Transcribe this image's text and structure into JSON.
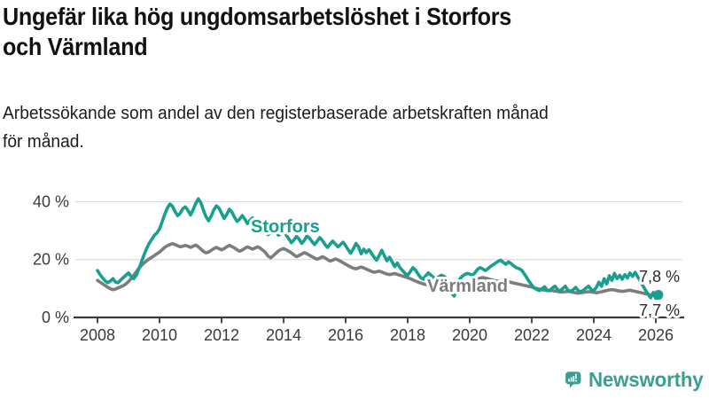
{
  "title": {
    "line1": "Ungefär lika hög ungdomsarbetslöshet i Storfors",
    "line2": "och Värmland"
  },
  "subtitle": {
    "line1": "Arbetssökande som andel av den registerbaserade arbetskraften månad",
    "line2": "för månad."
  },
  "branding": {
    "name": "Newsworthy",
    "logo_icon": "bar-chart-speech-bubble-icon",
    "color": "#3a9e90"
  },
  "chart_data": {
    "type": "line",
    "title": "",
    "xlabel": "",
    "ylabel": "",
    "frequency": "monthly",
    "x_start": "2008-01",
    "x_end": "2026-02",
    "ylim": [
      0,
      44
    ],
    "grid": "horizontal",
    "y_gridlines": [
      20,
      40
    ],
    "y_tick_labels": [
      "40 %",
      "20 %",
      "0 %"
    ],
    "x_tick_labels": [
      "2008",
      "2010",
      "2012",
      "2014",
      "2016",
      "2018",
      "2020",
      "2022",
      "2024",
      "2026"
    ],
    "legend_position": "inline-labels",
    "series": [
      {
        "name": "Storfors",
        "color": "#17a08d",
        "end_label": "7,8 %",
        "end_value": 7.8,
        "values": [
          16.2,
          14.8,
          13.6,
          12.6,
          12.0,
          12.6,
          13.4,
          12.2,
          12.0,
          13.0,
          13.8,
          14.6,
          15.4,
          14.2,
          13.4,
          14.6,
          16.8,
          19.2,
          21.6,
          23.8,
          25.6,
          27.0,
          28.4,
          29.2,
          30.6,
          33.0,
          35.6,
          37.8,
          39.2,
          38.4,
          36.6,
          35.2,
          36.0,
          37.6,
          38.2,
          37.0,
          35.4,
          37.2,
          39.4,
          41.0,
          39.6,
          37.0,
          34.8,
          33.4,
          35.0,
          37.2,
          38.6,
          37.8,
          36.0,
          34.2,
          35.6,
          37.4,
          36.4,
          34.6,
          33.2,
          34.0,
          35.2,
          34.0,
          32.4,
          33.6,
          34.4,
          33.0,
          31.6,
          30.4,
          31.2,
          29.8,
          28.6,
          29.6,
          30.6,
          29.4,
          28.4,
          29.0,
          29.8,
          28.6,
          27.2,
          25.8,
          26.8,
          28.0,
          27.0,
          25.6,
          26.6,
          28.2,
          27.4,
          26.2,
          25.2,
          26.4,
          27.6,
          26.6,
          25.2,
          24.2,
          25.4,
          26.4,
          25.4,
          24.4,
          25.2,
          26.0,
          24.8,
          23.4,
          22.2,
          23.8,
          25.6,
          24.4,
          22.0,
          23.6,
          22.4,
          23.4,
          22.2,
          20.8,
          19.8,
          21.4,
          23.2,
          21.2,
          19.6,
          20.8,
          19.2,
          17.6,
          18.8,
          17.2,
          16.2,
          15.2,
          14.6,
          15.8,
          17.2,
          16.4,
          15.0,
          13.8,
          13.2,
          14.4,
          15.4,
          14.6,
          13.8,
          13.4,
          14.0,
          14.6,
          14.2,
          13.6,
          12.6,
          8.4,
          7.4,
          10.2,
          13.0,
          14.2,
          14.8,
          15.2,
          15.0,
          14.6,
          15.4,
          16.6,
          17.2,
          16.8,
          16.2,
          16.8,
          17.6,
          18.2,
          18.8,
          19.4,
          19.8,
          19.0,
          18.4,
          19.2,
          18.6,
          17.8,
          17.2,
          16.9,
          16.4,
          15.2,
          13.8,
          12.4,
          11.2,
          10.2,
          9.6,
          9.3,
          10.0,
          10.6,
          9.4,
          9.2,
          10.2,
          10.8,
          9.6,
          9.2,
          10.0,
          10.8,
          9.4,
          9.0,
          9.6,
          10.4,
          9.2,
          8.9,
          9.4,
          10.2,
          10.8,
          9.6,
          9.2,
          10.4,
          12.2,
          10.8,
          13.4,
          11.6,
          14.4,
          12.8,
          15.2,
          13.4,
          14.6,
          13.2,
          14.8,
          13.6,
          15.4,
          14.2,
          15.6,
          14.0,
          12.6,
          11.0,
          9.4,
          8.0,
          6.8,
          8.6,
          6.6,
          7.8
        ]
      },
      {
        "name": "Värmland",
        "color": "#7d7d7d",
        "end_label": "7,7 %",
        "end_value": 7.7,
        "values": [
          12.8,
          12.2,
          11.6,
          11.0,
          10.4,
          9.9,
          9.6,
          9.8,
          10.2,
          10.6,
          11.0,
          11.6,
          12.4,
          13.4,
          14.6,
          15.8,
          17.0,
          18.0,
          18.8,
          19.6,
          20.2,
          20.8,
          21.4,
          22.0,
          22.6,
          23.4,
          24.2,
          24.8,
          25.2,
          25.5,
          25.2,
          24.8,
          24.4,
          24.6,
          24.9,
          24.6,
          24.2,
          24.6,
          25.0,
          24.4,
          23.6,
          22.8,
          22.3,
          22.6,
          23.2,
          23.8,
          24.2,
          23.8,
          23.4,
          23.8,
          24.4,
          24.9,
          24.5,
          24.0,
          23.4,
          22.9,
          23.3,
          23.9,
          24.4,
          24.0,
          23.6,
          24.0,
          24.4,
          23.9,
          23.2,
          22.4,
          21.2,
          20.6,
          21.3,
          22.2,
          23.0,
          23.5,
          23.8,
          23.4,
          22.9,
          22.3,
          21.6,
          21.0,
          21.4,
          21.9,
          22.4,
          22.0,
          21.5,
          21.0,
          20.5,
          20.1,
          20.5,
          21.0,
          20.6,
          20.0,
          19.5,
          19.8,
          20.2,
          19.9,
          19.4,
          18.9,
          18.4,
          17.9,
          17.4,
          17.0,
          16.8,
          17.1,
          17.4,
          17.1,
          16.7,
          16.3,
          15.9,
          15.6,
          15.8,
          16.0,
          15.7,
          15.3,
          15.0,
          14.8,
          15.0,
          15.2,
          14.9,
          14.6,
          14.3,
          14.0,
          13.7,
          13.4,
          13.0,
          12.6,
          12.2,
          11.9,
          11.6,
          11.4,
          11.2,
          11.1,
          11.3,
          11.5,
          11.3,
          11.1,
          11.0,
          11.2,
          11.4,
          11.2,
          11.0,
          11.2,
          11.5,
          11.8,
          12.0,
          12.2,
          12.4,
          12.2,
          12.6,
          13.2,
          13.6,
          13.8,
          13.6,
          13.4,
          13.1,
          12.9,
          12.7,
          12.5,
          12.7,
          12.9,
          12.7,
          12.4,
          12.1,
          11.9,
          11.7,
          11.5,
          11.3,
          11.1,
          10.9,
          10.7,
          10.5,
          10.2,
          10.0,
          9.8,
          9.6,
          9.4,
          9.3,
          9.4,
          9.3,
          9.1,
          9.0,
          8.8,
          8.8,
          8.9,
          9.0,
          8.9,
          8.7,
          8.5,
          8.4,
          8.5,
          8.7,
          8.8,
          8.9,
          8.8,
          8.7,
          8.5,
          8.7,
          8.9,
          9.1,
          9.3,
          9.5,
          9.6,
          9.5,
          9.3,
          9.1,
          9.0,
          9.1,
          9.3,
          9.4,
          9.2,
          9.0,
          8.8,
          8.6,
          8.4,
          8.2,
          8.0,
          7.8,
          7.6,
          7.6,
          7.7
        ]
      }
    ]
  }
}
